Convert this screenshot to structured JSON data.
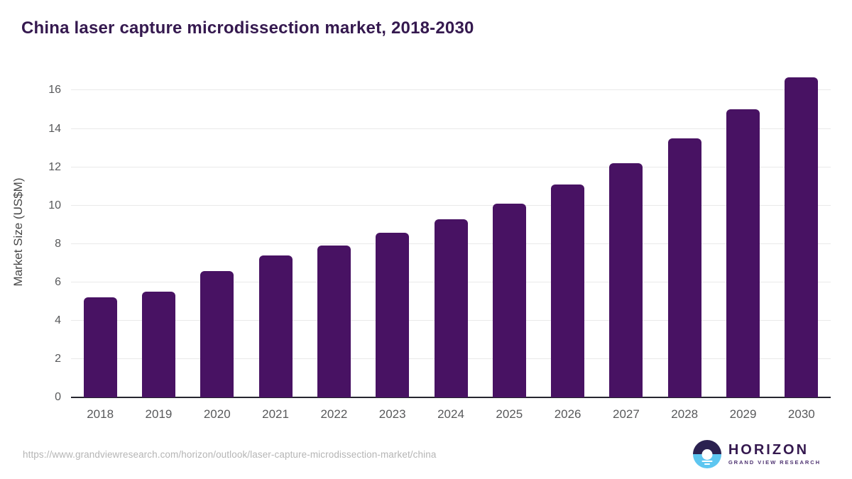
{
  "title": "China laser capture microdissection market, 2018-2030",
  "chart_data": {
    "type": "bar",
    "title": "China laser capture microdissection market, 2018-2030",
    "categories": [
      "2018",
      "2019",
      "2020",
      "2021",
      "2022",
      "2023",
      "2024",
      "2025",
      "2026",
      "2027",
      "2028",
      "2029",
      "2030"
    ],
    "values": [
      5.2,
      5.5,
      6.6,
      7.4,
      7.9,
      8.6,
      9.3,
      10.1,
      11.1,
      12.2,
      13.5,
      15.0,
      16.7
    ],
    "xlabel": "",
    "ylabel": "Market Size (US$M)",
    "ylim": [
      0,
      17.2
    ],
    "yticks": [
      0,
      2,
      4,
      6,
      8,
      10,
      12,
      14,
      16
    ],
    "grid": true,
    "legend": "none",
    "bar_color": "#481263"
  },
  "colors": {
    "bar": "#481263",
    "title_text": "#35194f",
    "axis_text": "#58595b",
    "gridline": "#e9e9e9",
    "axis_line": "#26262e",
    "url_text": "#b5b5b5",
    "logo_dark": "#2b2150",
    "logo_blue": "#5ec6f0"
  },
  "footer": {
    "source_url": "https://www.grandviewresearch.com/horizon/outlook/laser-capture-microdissection-market/china",
    "logo": {
      "brand": "HORIZON",
      "sub_brand": "GRAND VIEW RESEARCH"
    }
  }
}
